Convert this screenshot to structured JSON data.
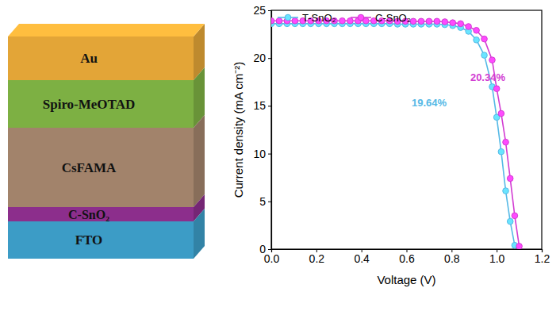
{
  "diagram": {
    "layers": [
      {
        "label": "Au",
        "color": "#E3A537"
      },
      {
        "label": "Spiro-MeOTAD",
        "color": "#7DB043"
      },
      {
        "label": "CsFAMA",
        "color": "#A2836B"
      },
      {
        "label": "C-SnO₂",
        "color": "#8C2E8C"
      },
      {
        "label": "FTO",
        "color": "#3C9CC6"
      }
    ]
  },
  "chart_data": {
    "type": "line",
    "x_label": "Voltage (V)",
    "y_label": "Current density (mA cm⁻²)",
    "x": [
      0,
      0.035,
      0.07,
      0.105,
      0.14,
      0.175,
      0.21,
      0.245,
      0.28,
      0.315,
      0.35,
      0.385,
      0.42,
      0.455,
      0.49,
      0.525,
      0.56,
      0.595,
      0.63,
      0.665,
      0.7,
      0.735,
      0.77,
      0.805,
      0.84,
      0.875,
      0.91,
      0.945,
      0.98,
      1.0,
      1.02,
      1.04,
      1.06,
      1.08,
      1.1
    ],
    "series": [
      {
        "name": "T-SnO₂",
        "color": "#55B9E6",
        "marker": "circle",
        "line_style": "solid",
        "values": [
          23.6,
          23.6,
          23.6,
          23.6,
          23.6,
          23.6,
          23.6,
          23.6,
          23.6,
          23.6,
          23.6,
          23.6,
          23.6,
          23.6,
          23.6,
          23.6,
          23.55,
          23.55,
          23.55,
          23.55,
          23.55,
          23.55,
          23.5,
          23.4,
          23.2,
          22.8,
          21.9,
          20.3,
          17.0,
          13.8,
          10.2,
          6.1,
          2.9,
          0.4,
          null
        ]
      },
      {
        "name": "C-SnO₂",
        "color": "#D23CD2",
        "marker": "circle",
        "line_style": "solid",
        "values": [
          23.9,
          23.9,
          23.9,
          23.9,
          23.9,
          23.9,
          23.9,
          23.9,
          23.9,
          23.9,
          23.9,
          23.9,
          23.9,
          23.9,
          23.9,
          23.9,
          23.85,
          23.85,
          23.85,
          23.85,
          23.85,
          23.85,
          23.8,
          23.7,
          23.6,
          23.3,
          22.9,
          22.0,
          19.8,
          16.8,
          14.2,
          11.2,
          7.4,
          3.5,
          0.3
        ]
      }
    ],
    "annotations": [
      {
        "text": "20.34%",
        "x": 0.883,
        "y": 18.0,
        "color": "#D23CD2"
      },
      {
        "text": "19.64%",
        "x": 0.623,
        "y": 15.3,
        "color": "#55B9E6"
      }
    ],
    "xlim": [
      0,
      1.2
    ],
    "xticks": [
      {
        "value": 0,
        "label": "0.0"
      },
      {
        "value": 0.2,
        "label": "0.2"
      },
      {
        "value": 0.4,
        "label": "0.4"
      },
      {
        "value": 0.6,
        "label": "0.6"
      },
      {
        "value": 0.8,
        "label": "0.8"
      },
      {
        "value": 1.0,
        "label": "1.0"
      },
      {
        "value": 1.2,
        "label": "1.2"
      }
    ],
    "ylim": [
      0,
      25
    ],
    "yticks": [
      0,
      5,
      10,
      15,
      20,
      25
    ],
    "legend": "upper left",
    "grid": false
  }
}
